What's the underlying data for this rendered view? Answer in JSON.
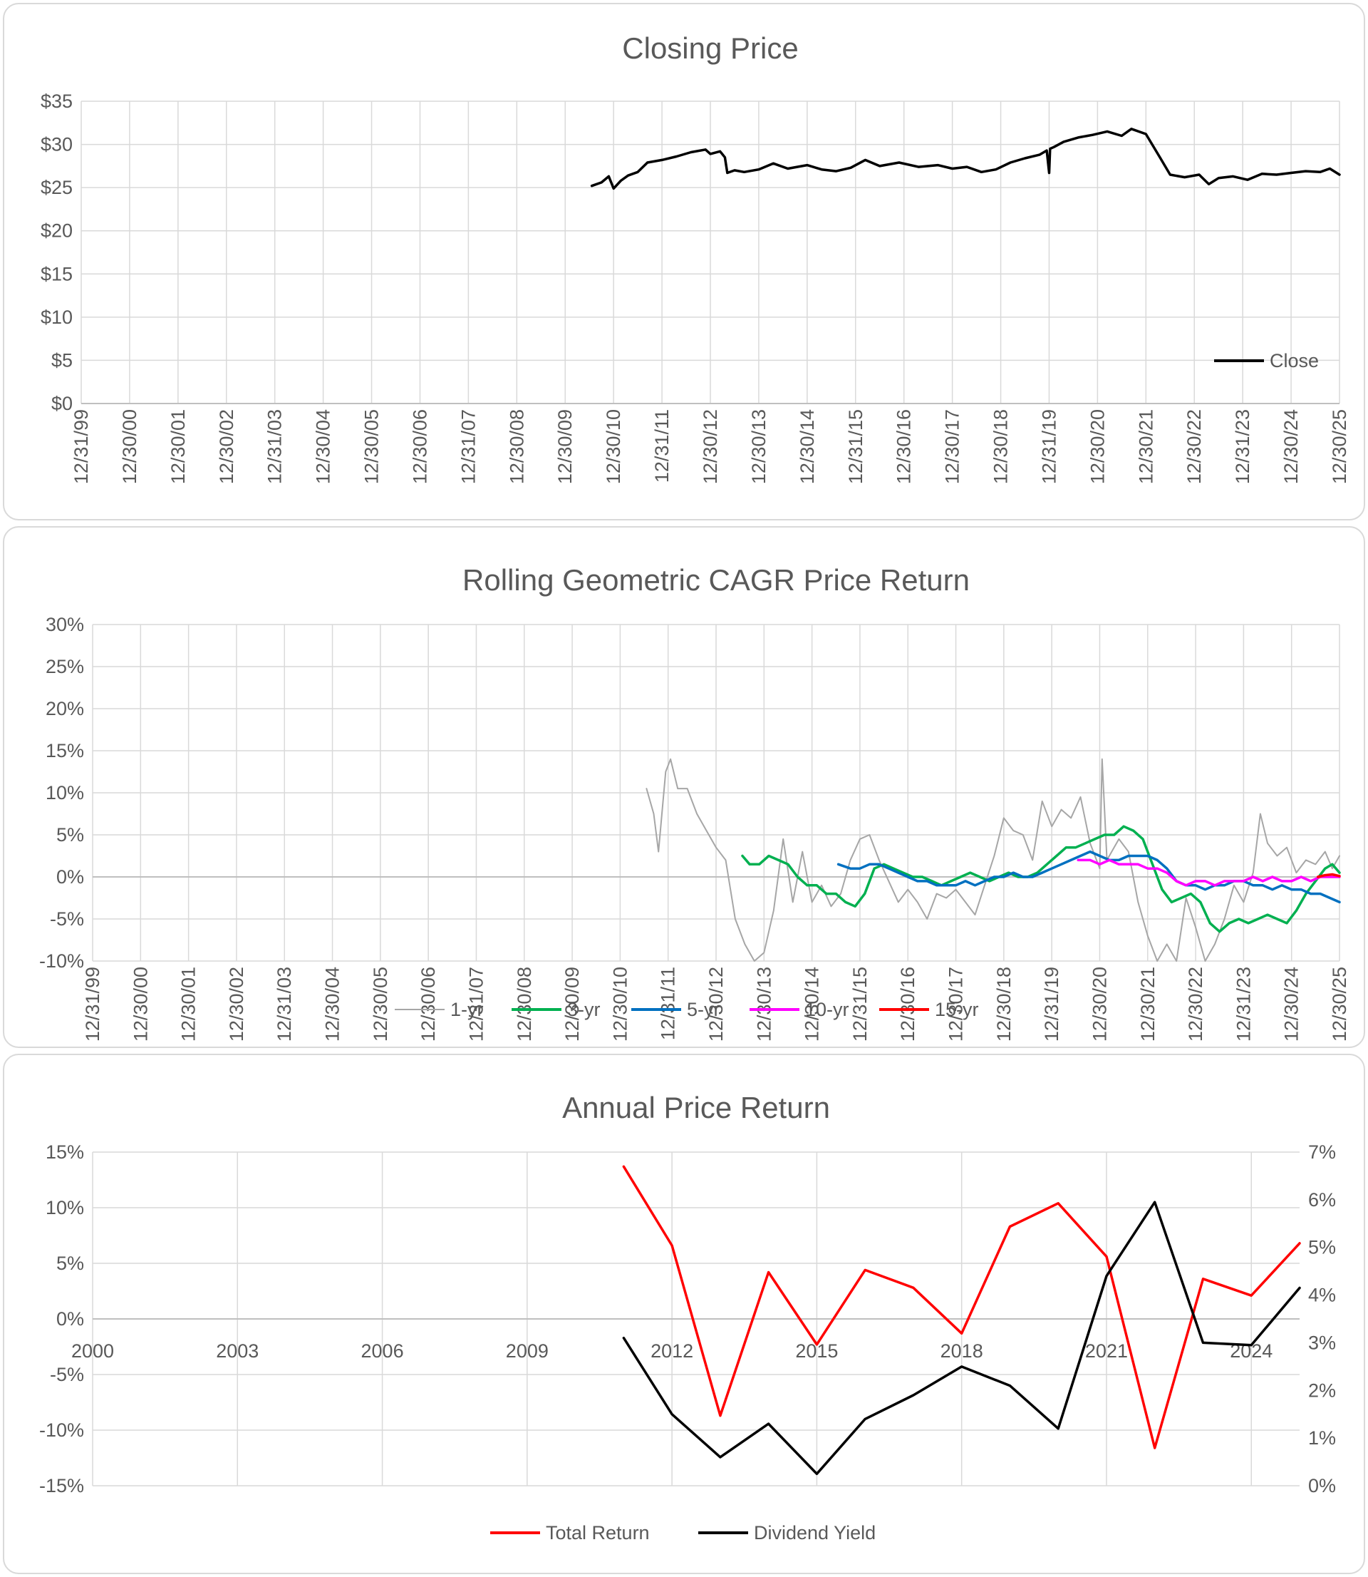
{
  "chart_data": [
    {
      "type": "line",
      "title": "Closing Price",
      "x_tick_labels": [
        "12/31/99",
        "12/30/00",
        "12/30/01",
        "12/30/02",
        "12/31/03",
        "12/30/04",
        "12/30/05",
        "12/30/06",
        "12/31/07",
        "12/30/08",
        "12/30/09",
        "12/30/10",
        "12/31/11",
        "12/30/12",
        "12/30/13",
        "12/30/14",
        "12/31/15",
        "12/30/16",
        "12/30/17",
        "12/30/18",
        "12/31/19",
        "12/30/20",
        "12/30/21",
        "12/30/22",
        "12/31/23",
        "12/30/24",
        "12/30/25"
      ],
      "y_tick_labels": [
        "$0",
        "$5",
        "$10",
        "$15",
        "$20",
        "$25",
        "$30",
        "$35"
      ],
      "ylim": [
        0,
        35
      ],
      "xlim": [
        2000,
        2026
      ],
      "legend_position": "bottom-right",
      "series": [
        {
          "name": "Close",
          "color": "#000000",
          "x": [
            2010.55,
            2010.75,
            2010.9,
            2011.0,
            2011.15,
            2011.3,
            2011.5,
            2011.7,
            2012.0,
            2012.3,
            2012.6,
            2012.9,
            2013.0,
            2013.2,
            2013.3,
            2013.35,
            2013.5,
            2013.7,
            2014.0,
            2014.3,
            2014.6,
            2015.0,
            2015.3,
            2015.6,
            2015.9,
            2016.2,
            2016.5,
            2016.9,
            2017.3,
            2017.7,
            2018.0,
            2018.3,
            2018.6,
            2018.9,
            2019.2,
            2019.5,
            2019.8,
            2019.95,
            2020.0,
            2020.02,
            2020.1,
            2020.3,
            2020.6,
            2020.9,
            2021.2,
            2021.5,
            2021.7,
            2022.0,
            2022.15,
            2022.3,
            2022.5,
            2022.8,
            2023.1,
            2023.3,
            2023.5,
            2023.8,
            2024.1,
            2024.4,
            2024.7,
            2025.0,
            2025.3,
            2025.6,
            2025.8,
            2026.0
          ],
          "y": [
            25.2,
            25.6,
            26.3,
            24.9,
            25.8,
            26.4,
            26.8,
            27.9,
            28.2,
            28.6,
            29.1,
            29.4,
            28.9,
            29.2,
            28.5,
            26.7,
            27.0,
            26.8,
            27.1,
            27.8,
            27.2,
            27.6,
            27.1,
            26.9,
            27.3,
            28.2,
            27.5,
            27.9,
            27.4,
            27.6,
            27.2,
            27.4,
            26.8,
            27.1,
            27.9,
            28.4,
            28.8,
            29.3,
            26.7,
            29.5,
            29.7,
            30.3,
            30.8,
            31.1,
            31.5,
            31.0,
            31.8,
            31.2,
            29.8,
            28.4,
            26.5,
            26.2,
            26.5,
            25.4,
            26.1,
            26.3,
            25.9,
            26.6,
            26.5,
            26.7,
            26.9,
            26.8,
            27.2,
            26.5
          ]
        }
      ]
    },
    {
      "type": "line",
      "title": "Rolling Geometric CAGR Price Return",
      "x_tick_labels": [
        "12/31/99",
        "12/30/00",
        "12/30/01",
        "12/30/02",
        "12/31/03",
        "12/30/04",
        "12/30/05",
        "12/30/06",
        "12/31/07",
        "12/30/08",
        "12/30/09",
        "12/30/10",
        "12/31/11",
        "12/30/12",
        "12/30/13",
        "12/30/14",
        "12/31/15",
        "12/30/16",
        "12/30/17",
        "12/30/18",
        "12/31/19",
        "12/30/20",
        "12/30/21",
        "12/30/22",
        "12/31/23",
        "12/30/24",
        "12/30/25"
      ],
      "y_tick_labels": [
        "-10%",
        "-5%",
        "0%",
        "5%",
        "10%",
        "15%",
        "20%",
        "25%",
        "30%"
      ],
      "ylim": [
        -10,
        30
      ],
      "xlim": [
        2000,
        2026
      ],
      "legend_position": "bottom",
      "series": [
        {
          "name": "1-yr",
          "color": "#a6a6a6",
          "x": [
            2011.55,
            2011.7,
            2011.8,
            2011.95,
            2012.05,
            2012.2,
            2012.4,
            2012.6,
            2012.8,
            2013.0,
            2013.2,
            2013.4,
            2013.6,
            2013.8,
            2014.0,
            2014.2,
            2014.4,
            2014.6,
            2014.8,
            2015.0,
            2015.2,
            2015.4,
            2015.6,
            2015.8,
            2016.0,
            2016.2,
            2016.4,
            2016.6,
            2016.8,
            2017.0,
            2017.2,
            2017.4,
            2017.6,
            2017.8,
            2018.0,
            2018.2,
            2018.4,
            2018.6,
            2018.8,
            2019.0,
            2019.2,
            2019.4,
            2019.6,
            2019.8,
            2020.0,
            2020.2,
            2020.4,
            2020.6,
            2020.8,
            2021.0,
            2021.05,
            2021.15,
            2021.4,
            2021.6,
            2021.8,
            2022.0,
            2022.2,
            2022.4,
            2022.6,
            2022.8,
            2023.0,
            2023.2,
            2023.4,
            2023.6,
            2023.8,
            2024.0,
            2024.2,
            2024.35,
            2024.5,
            2024.7,
            2024.9,
            2025.1,
            2025.3,
            2025.5,
            2025.7,
            2025.85,
            2026.0
          ],
          "y": [
            10.5,
            7.5,
            3.0,
            12.5,
            14.0,
            10.5,
            10.5,
            7.5,
            5.5,
            3.5,
            2.0,
            -5.0,
            -8.0,
            -10.0,
            -9.0,
            -4.0,
            4.5,
            -3.0,
            3.0,
            -3.0,
            -1.0,
            -3.5,
            -2.0,
            2.0,
            4.5,
            5.0,
            2.0,
            -0.5,
            -3.0,
            -1.5,
            -3.0,
            -5.0,
            -2.0,
            -2.5,
            -1.5,
            -3.0,
            -4.5,
            -1.0,
            2.5,
            7.0,
            5.5,
            5.0,
            2.0,
            9.0,
            6.0,
            8.0,
            7.0,
            9.5,
            4.0,
            1.0,
            14.0,
            2.0,
            4.5,
            3.0,
            -3.0,
            -7.0,
            -10.0,
            -8.0,
            -10.0,
            -2.5,
            -6.0,
            -10.0,
            -8.0,
            -5.0,
            -1.0,
            -3.0,
            0.5,
            7.5,
            4.0,
            2.5,
            3.5,
            0.5,
            2.0,
            1.5,
            3.0,
            1.0,
            2.5
          ]
        },
        {
          "name": "3-yr",
          "color": "#00b050",
          "x": [
            2013.55,
            2013.7,
            2013.9,
            2014.1,
            2014.3,
            2014.5,
            2014.7,
            2014.9,
            2015.1,
            2015.3,
            2015.5,
            2015.7,
            2015.9,
            2016.1,
            2016.3,
            2016.5,
            2016.7,
            2016.9,
            2017.1,
            2017.3,
            2017.5,
            2017.7,
            2017.9,
            2018.1,
            2018.3,
            2018.5,
            2018.7,
            2018.9,
            2019.1,
            2019.3,
            2019.5,
            2019.7,
            2019.9,
            2020.1,
            2020.3,
            2020.5,
            2020.7,
            2020.9,
            2021.1,
            2021.3,
            2021.5,
            2021.7,
            2021.9,
            2022.1,
            2022.3,
            2022.5,
            2022.7,
            2022.9,
            2023.1,
            2023.3,
            2023.5,
            2023.7,
            2023.9,
            2024.1,
            2024.3,
            2024.5,
            2024.7,
            2024.9,
            2025.1,
            2025.3,
            2025.5,
            2025.7,
            2025.85,
            2026.0
          ],
          "y": [
            2.5,
            1.5,
            1.5,
            2.5,
            2.0,
            1.5,
            0.0,
            -1.0,
            -1.0,
            -2.0,
            -2.0,
            -3.0,
            -3.5,
            -2.0,
            1.0,
            1.5,
            1.0,
            0.5,
            0.0,
            0.0,
            -0.5,
            -1.0,
            -0.5,
            0.0,
            0.5,
            0.0,
            -0.5,
            0.0,
            0.5,
            0.0,
            0.0,
            0.5,
            1.5,
            2.5,
            3.5,
            3.5,
            4.0,
            4.5,
            5.0,
            5.0,
            6.0,
            5.5,
            4.5,
            1.5,
            -1.5,
            -3.0,
            -2.5,
            -2.0,
            -3.0,
            -5.5,
            -6.5,
            -5.5,
            -5.0,
            -5.5,
            -5.0,
            -4.5,
            -5.0,
            -5.5,
            -4.0,
            -2.0,
            -0.5,
            1.0,
            1.5,
            0.5
          ]
        },
        {
          "name": "5-yr",
          "color": "#0070c0",
          "x": [
            2015.55,
            2015.8,
            2016.0,
            2016.2,
            2016.4,
            2016.6,
            2016.8,
            2017.0,
            2017.2,
            2017.4,
            2017.6,
            2017.8,
            2018.0,
            2018.2,
            2018.4,
            2018.6,
            2018.8,
            2019.0,
            2019.2,
            2019.4,
            2019.6,
            2019.8,
            2020.0,
            2020.2,
            2020.4,
            2020.6,
            2020.8,
            2021.0,
            2021.2,
            2021.4,
            2021.6,
            2021.8,
            2022.0,
            2022.2,
            2022.4,
            2022.6,
            2022.8,
            2023.0,
            2023.2,
            2023.4,
            2023.6,
            2023.8,
            2024.0,
            2024.2,
            2024.4,
            2024.6,
            2024.8,
            2025.0,
            2025.2,
            2025.4,
            2025.6,
            2025.8,
            2026.0
          ],
          "y": [
            1.5,
            1.0,
            1.0,
            1.5,
            1.5,
            1.0,
            0.5,
            0.0,
            -0.5,
            -0.5,
            -1.0,
            -1.0,
            -1.0,
            -0.5,
            -1.0,
            -0.5,
            0.0,
            0.0,
            0.5,
            0.0,
            0.0,
            0.5,
            1.0,
            1.5,
            2.0,
            2.5,
            3.0,
            2.5,
            2.0,
            2.0,
            2.5,
            2.5,
            2.5,
            2.0,
            1.0,
            -0.5,
            -1.0,
            -1.0,
            -1.5,
            -1.0,
            -1.0,
            -0.5,
            -0.5,
            -1.0,
            -1.0,
            -1.5,
            -1.0,
            -1.5,
            -1.5,
            -2.0,
            -2.0,
            -2.5,
            -3.0
          ]
        },
        {
          "name": "10-yr",
          "color": "#ff00ff",
          "x": [
            2020.55,
            2020.8,
            2021.0,
            2021.2,
            2021.4,
            2021.6,
            2021.8,
            2022.0,
            2022.2,
            2022.4,
            2022.6,
            2022.8,
            2023.0,
            2023.2,
            2023.4,
            2023.6,
            2023.8,
            2024.0,
            2024.2,
            2024.4,
            2024.6,
            2024.8,
            2025.0,
            2025.2,
            2025.4,
            2025.6,
            2025.8,
            2026.0
          ],
          "y": [
            2.0,
            2.0,
            1.5,
            2.0,
            1.5,
            1.5,
            1.5,
            1.0,
            1.0,
            0.5,
            -0.5,
            -1.0,
            -0.5,
            -0.5,
            -1.0,
            -0.5,
            -0.5,
            -0.5,
            0.0,
            -0.5,
            0.0,
            -0.5,
            -0.5,
            0.0,
            -0.5,
            0.0,
            0.0,
            0.0
          ]
        },
        {
          "name": "15-yr",
          "color": "#ff0000",
          "x": [
            2025.55,
            2025.7,
            2025.85,
            2026.0
          ],
          "y": [
            0.0,
            0.2,
            0.3,
            0.1
          ]
        }
      ]
    },
    {
      "type": "line",
      "title": "Annual Price Return",
      "x_tick_labels": [
        "2000",
        "2003",
        "2006",
        "2009",
        "2012",
        "2015",
        "2018",
        "2021",
        "2024"
      ],
      "x_tick_values": [
        2000,
        2003,
        2006,
        2009,
        2012,
        2015,
        2018,
        2021,
        2024
      ],
      "y_tick_labels": [
        "-15%",
        "-10%",
        "-5%",
        "0%",
        "5%",
        "10%",
        "15%"
      ],
      "y2_tick_labels": [
        "0%",
        "1%",
        "2%",
        "3%",
        "4%",
        "5%",
        "6%",
        "7%"
      ],
      "xlim": [
        2000,
        2025
      ],
      "ylim": [
        -15,
        15
      ],
      "y2lim": [
        0,
        7
      ],
      "legend_position": "bottom",
      "series": [
        {
          "name": "Total Return",
          "color": "#ff0000",
          "axis": "left",
          "x": [
            2011,
            2012,
            2013,
            2014,
            2015,
            2016,
            2017,
            2018,
            2019,
            2020,
            2021,
            2022,
            2023,
            2024,
            2025
          ],
          "y": [
            13.7,
            6.6,
            -8.7,
            4.2,
            -2.3,
            4.4,
            2.8,
            -1.3,
            8.3,
            10.4,
            5.6,
            -11.6,
            3.6,
            2.1,
            6.8
          ]
        },
        {
          "name": "Dividend Yield",
          "color": "#000000",
          "axis": "right",
          "x": [
            2011,
            2012,
            2013,
            2014,
            2015,
            2016,
            2017,
            2018,
            2019,
            2020,
            2021,
            2022,
            2023,
            2024,
            2025
          ],
          "y": [
            3.1,
            1.5,
            0.6,
            1.3,
            0.25,
            1.4,
            1.9,
            2.5,
            2.1,
            1.2,
            4.4,
            5.95,
            3.0,
            2.95,
            4.15
          ]
        }
      ]
    }
  ]
}
